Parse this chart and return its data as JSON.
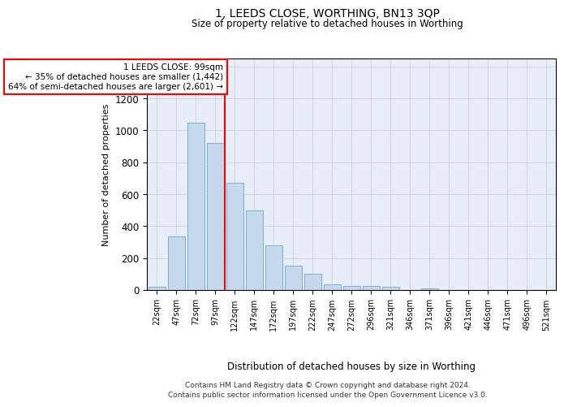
{
  "title": "1, LEEDS CLOSE, WORTHING, BN13 3QP",
  "subtitle": "Size of property relative to detached houses in Worthing",
  "xlabel": "Distribution of detached houses by size in Worthing",
  "ylabel": "Number of detached properties",
  "bar_labels": [
    "22sqm",
    "47sqm",
    "72sqm",
    "97sqm",
    "122sqm",
    "147sqm",
    "172sqm",
    "197sqm",
    "222sqm",
    "247sqm",
    "272sqm",
    "296sqm",
    "321sqm",
    "346sqm",
    "371sqm",
    "396sqm",
    "421sqm",
    "446sqm",
    "471sqm",
    "496sqm",
    "521sqm"
  ],
  "bar_values": [
    22,
    335,
    1050,
    920,
    670,
    500,
    278,
    155,
    103,
    38,
    25,
    25,
    18,
    0,
    12,
    0,
    0,
    0,
    0,
    0,
    0
  ],
  "bar_color": "#c6d9ec",
  "bar_edge_color": "#7aafd4",
  "vline_x": 3.5,
  "vline_color": "red",
  "annotation_text": "1 LEEDS CLOSE: 99sqm\n← 35% of detached houses are smaller (1,442)\n64% of semi-detached houses are larger (2,601) →",
  "annotation_box_color": "white",
  "annotation_box_edge_color": "red",
  "ylim": [
    0,
    1450
  ],
  "yticks": [
    0,
    200,
    400,
    600,
    800,
    1000,
    1200,
    1400
  ],
  "grid_color": "#d0d0d0",
  "bg_color": "#e8eef8",
  "footer_line1": "Contains HM Land Registry data © Crown copyright and database right 2024.",
  "footer_line2": "Contains public sector information licensed under the Open Government Licence v3.0."
}
